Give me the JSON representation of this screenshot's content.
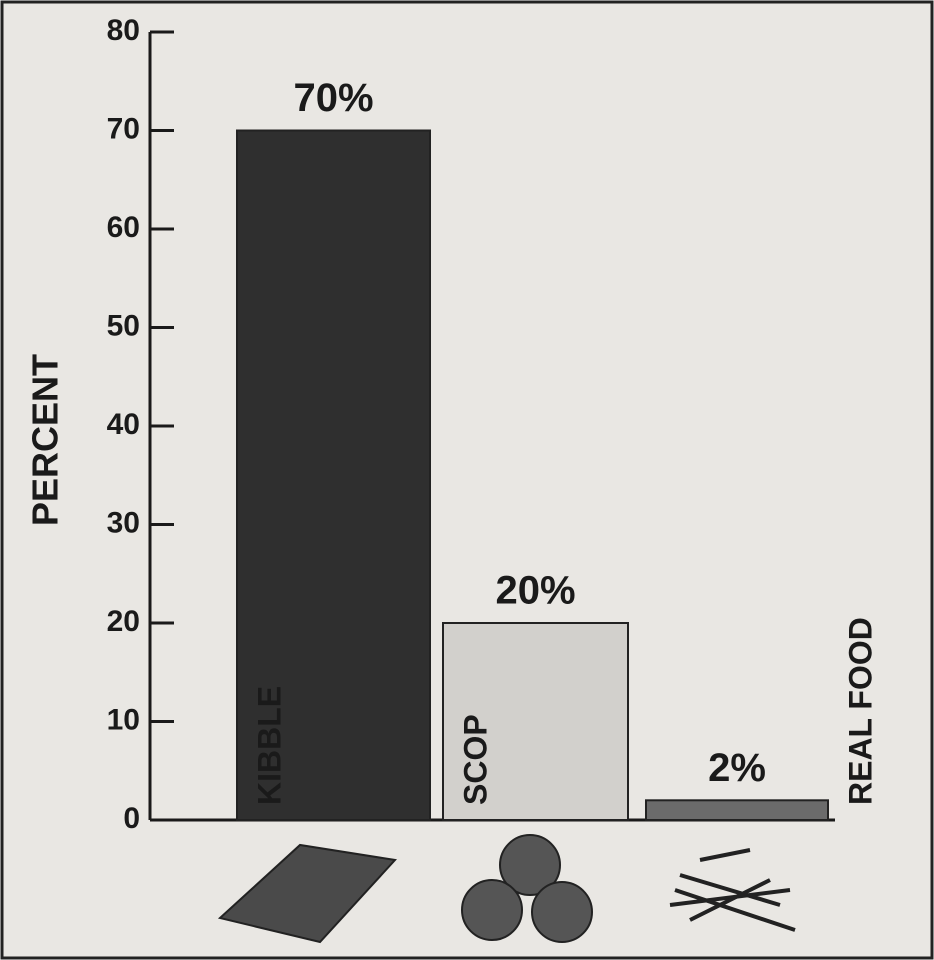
{
  "chart_data": {
    "type": "bar",
    "y_label": "PERCENT",
    "categories": [
      "KIBBLE",
      "SCOP",
      "REAL FOOD"
    ],
    "values": [
      70,
      20,
      2
    ],
    "value_labels": [
      "70%",
      "20%",
      "2%"
    ],
    "colors": [
      "#2f2f2f",
      "#d2d0cc",
      "#6b6b6b"
    ],
    "ylim": [
      0,
      80
    ],
    "yticks": [
      0,
      10,
      20,
      30,
      40,
      50,
      60,
      70,
      80
    ]
  }
}
